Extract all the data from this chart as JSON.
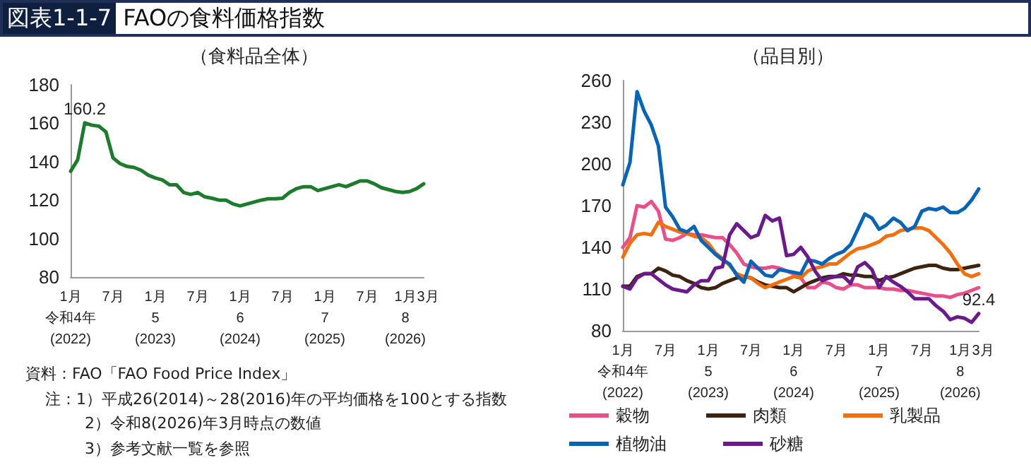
{
  "chart_data": [
    {
      "type": "line",
      "title": "図表1-1-7 FAOの食料価格指数",
      "subtitle": "（食料品全体）",
      "categories": [
        "1月",
        null,
        null,
        null,
        null,
        null,
        "7月",
        null,
        null,
        null,
        null,
        null,
        "1月",
        null,
        null,
        null,
        null,
        null,
        "7月",
        null,
        null,
        null,
        null,
        null,
        "1月",
        null,
        null,
        null,
        null,
        null,
        "7月",
        null,
        null,
        null,
        null,
        null,
        "1月",
        null,
        null,
        null,
        null,
        null,
        "7月",
        null,
        null,
        null,
        null,
        null,
        "1月",
        null,
        "3月"
      ],
      "series": [
        {
          "color": "#1e7b2e",
          "values": [
            135,
            141,
            160.2,
            159,
            158.5,
            155.5,
            142,
            139,
            137.5,
            137,
            135.5,
            133,
            131.5,
            130.5,
            128,
            128,
            124,
            123,
            124,
            121.7,
            121,
            120,
            120,
            118,
            117,
            118,
            119,
            120,
            120.7,
            120.7,
            121,
            124,
            126,
            127,
            127,
            125,
            126,
            127,
            128,
            127,
            128.5,
            130,
            130,
            128.5,
            126.5,
            125.5,
            124.5,
            124,
            124.5,
            126,
            128.5
          ],
          "value_labels": [
            null,
            null,
            "160.2",
            null,
            null,
            null,
            null,
            null,
            null,
            null,
            null,
            null,
            null,
            null,
            null,
            null,
            null,
            null,
            null,
            null,
            null,
            null,
            null,
            null,
            null,
            null,
            null,
            null,
            null,
            null,
            null,
            null,
            null,
            null,
            null,
            null,
            null,
            null,
            null,
            null,
            null,
            null,
            null,
            null,
            null,
            null,
            null,
            null,
            null,
            null,
            null
          ]
        }
      ],
      "ylim": [
        80,
        180
      ],
      "yticks": [
        80,
        100,
        120,
        140,
        160,
        180
      ],
      "grid": false,
      "legend": false,
      "marker": "none",
      "line_style": "solid",
      "annotations": [
        "令和4年\n(2022)",
        "5\n(2023)",
        "6\n(2024)",
        "7\n(2025)",
        "8\n(2026)",
        "資料：FAO「FAO Food Price Index」",
        "注：1）平成26(2014)～28(2016)年の平均価格を100とする指数",
        "2）令和8(2026)年3月時点の数値",
        "3）参考文献一覧を参照"
      ]
    },
    {
      "type": "line",
      "title": "（品目別）",
      "categories": [
        "1月",
        null,
        null,
        null,
        null,
        null,
        "7月",
        null,
        null,
        null,
        null,
        null,
        "1月",
        null,
        null,
        null,
        null,
        null,
        "7月",
        null,
        null,
        null,
        null,
        null,
        "1月",
        null,
        null,
        null,
        null,
        null,
        "7月",
        null,
        null,
        null,
        null,
        null,
        "1月",
        null,
        null,
        null,
        null,
        null,
        "7月",
        null,
        null,
        null,
        null,
        null,
        "1月",
        null,
        "3月"
      ],
      "series": [
        {
          "name": "穀物",
          "color": "#e8508a",
          "values": [
            140,
            147,
            170,
            169,
            173,
            166,
            146,
            145,
            147,
            150,
            149,
            149,
            148,
            147,
            147,
            142,
            136,
            128,
            126,
            125,
            125,
            126,
            125,
            123,
            121,
            118,
            111,
            111,
            115,
            114,
            111,
            110,
            113,
            113,
            111,
            111,
            111,
            110,
            110,
            109,
            109,
            108,
            107,
            106,
            105,
            105,
            104,
            106,
            107,
            109,
            111
          ]
        },
        {
          "name": "肉類",
          "color": "#3d2410",
          "values": [
            112,
            112,
            119,
            121,
            121,
            125,
            123,
            120,
            119,
            116,
            114,
            111,
            110,
            111,
            114,
            116,
            118,
            119,
            118,
            115,
            113,
            112,
            111,
            111,
            108,
            111,
            114,
            116,
            118,
            119,
            119,
            121,
            120,
            120,
            119,
            119,
            116,
            118,
            119,
            121,
            123,
            125,
            126,
            127,
            127,
            125,
            124,
            124,
            125,
            126,
            127
          ]
        },
        {
          "name": "乳製品",
          "color": "#f07010",
          "values": [
            133,
            143,
            149,
            150,
            149,
            158,
            155,
            153,
            151,
            150,
            148,
            147,
            143,
            136,
            132,
            127,
            121,
            119,
            118,
            114,
            111,
            113,
            115,
            117,
            119,
            118,
            123,
            125,
            126,
            128,
            128,
            132,
            136,
            139,
            140,
            142,
            144,
            148,
            149,
            152,
            153,
            154,
            154,
            152,
            147,
            142,
            136,
            128,
            121,
            119,
            121
          ]
        },
        {
          "name": "植物油",
          "color": "#0a64b4",
          "values": [
            185,
            201,
            252,
            238,
            228,
            213,
            169,
            162,
            153,
            151,
            155,
            145,
            140,
            135,
            131,
            128,
            120,
            115,
            130,
            125,
            120,
            119,
            124,
            123,
            122,
            121,
            131,
            130,
            128,
            132,
            135,
            137,
            142,
            153,
            164,
            161,
            153,
            156,
            161,
            158,
            152,
            155,
            166,
            168,
            167,
            169,
            165,
            165,
            168,
            174,
            182
          ]
        },
        {
          "name": "砂糖",
          "color": "#6a1a8a",
          "values": [
            112,
            110,
            118,
            121,
            121,
            117,
            113,
            110,
            109,
            108,
            113,
            116,
            116,
            125,
            126,
            149,
            157,
            152,
            147,
            149,
            163,
            159,
            161,
            134,
            135,
            140,
            133,
            123,
            116,
            118,
            119,
            119,
            114,
            126,
            129,
            124,
            111,
            119,
            115,
            112,
            108,
            103,
            103,
            103,
            98,
            94,
            88,
            90,
            89,
            86,
            92.4
          ],
          "value_labels": [
            null,
            null,
            null,
            null,
            null,
            null,
            null,
            null,
            null,
            null,
            null,
            null,
            null,
            null,
            null,
            null,
            null,
            null,
            null,
            null,
            null,
            null,
            null,
            null,
            null,
            null,
            null,
            null,
            null,
            null,
            null,
            null,
            null,
            null,
            null,
            null,
            null,
            null,
            null,
            null,
            null,
            null,
            null,
            null,
            null,
            null,
            null,
            null,
            null,
            null,
            "92.4"
          ]
        }
      ],
      "ylim": [
        80,
        260
      ],
      "yticks": [
        80,
        110,
        140,
        170,
        200,
        230,
        260
      ],
      "grid": false,
      "legend": "bottom",
      "marker": "none",
      "line_style": "solid",
      "annotations": [
        "令和4年\n(2022)",
        "5\n(2023)",
        "6\n(2024)",
        "7\n(2025)",
        "8\n(2026)"
      ]
    }
  ]
}
